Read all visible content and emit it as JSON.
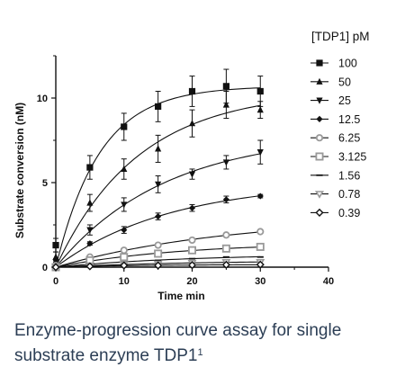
{
  "chart_data": {
    "type": "line",
    "xlabel": "Time min",
    "ylabel": "Substrate conversion (nM)",
    "xlim": [
      0,
      40
    ],
    "ylim": [
      0,
      12.5
    ],
    "xticks": [
      0,
      10,
      20,
      30,
      40
    ],
    "yticks": [
      0,
      5,
      10
    ],
    "legend_title": "[TDP1] pM",
    "legend_position": "top-right",
    "grid": false,
    "x": [
      0,
      5,
      10,
      15,
      20,
      25,
      30
    ],
    "series": [
      {
        "name": "100",
        "marker": "square",
        "values": [
          1.3,
          5.9,
          8.3,
          9.5,
          10.4,
          10.7,
          10.4
        ],
        "err": [
          0.4,
          0.7,
          0.8,
          0.9,
          0.9,
          1.0,
          0.9
        ]
      },
      {
        "name": "50",
        "marker": "triangle-up",
        "values": [
          0.6,
          3.8,
          5.8,
          7.0,
          8.5,
          9.6,
          9.3
        ],
        "err": [
          0.3,
          0.5,
          0.6,
          0.8,
          0.8,
          0.8,
          0.5
        ]
      },
      {
        "name": "25",
        "marker": "triangle-down",
        "values": [
          0.3,
          2.2,
          3.7,
          4.9,
          5.5,
          6.2,
          6.8
        ],
        "err": [
          0.2,
          0.3,
          0.4,
          0.5,
          0.3,
          0.4,
          0.7
        ]
      },
      {
        "name": "12.5",
        "marker": "diamond",
        "values": [
          0.1,
          1.4,
          2.2,
          3.0,
          3.5,
          4.0,
          4.2
        ],
        "err": [
          0.1,
          0.1,
          0.2,
          0.2,
          0.2,
          0.2,
          0.1
        ]
      },
      {
        "name": "6.25",
        "marker": "circle-open",
        "values": [
          0.1,
          0.6,
          1.0,
          1.3,
          1.6,
          1.9,
          2.1
        ],
        "err": [
          0.1,
          0.1,
          0.1,
          0.1,
          0.1,
          0.1,
          0.1
        ]
      },
      {
        "name": "3.125",
        "marker": "square-open",
        "values": [
          0.0,
          0.4,
          0.6,
          0.8,
          1.0,
          1.1,
          1.2
        ],
        "err": [
          0.05,
          0.1,
          0.1,
          0.1,
          0.1,
          0.1,
          0.1
        ]
      },
      {
        "name": "1.56",
        "marker": "dash",
        "values": [
          0.0,
          0.2,
          0.3,
          0.4,
          0.5,
          0.6,
          0.6
        ],
        "err": [
          0.05,
          0.05,
          0.05,
          0.05,
          0.05,
          0.05,
          0.05
        ]
      },
      {
        "name": "0.78",
        "marker": "triangle-open",
        "values": [
          0.0,
          0.1,
          0.15,
          0.2,
          0.25,
          0.3,
          0.3
        ],
        "err": [
          0.03,
          0.03,
          0.03,
          0.03,
          0.03,
          0.03,
          0.03
        ]
      },
      {
        "name": "0.39",
        "marker": "diamond-open",
        "values": [
          0.0,
          0.05,
          0.1,
          0.1,
          0.12,
          0.14,
          0.15
        ],
        "err": [
          0.02,
          0.02,
          0.02,
          0.02,
          0.02,
          0.02,
          0.02
        ]
      }
    ],
    "colors": {
      "axis": "#111111",
      "series": "#111111",
      "open_marker": "#999999"
    }
  },
  "caption": {
    "line1": "Enzyme-progression curve assay for single",
    "line2": "substrate enzyme TDP1",
    "superscript": "1"
  }
}
